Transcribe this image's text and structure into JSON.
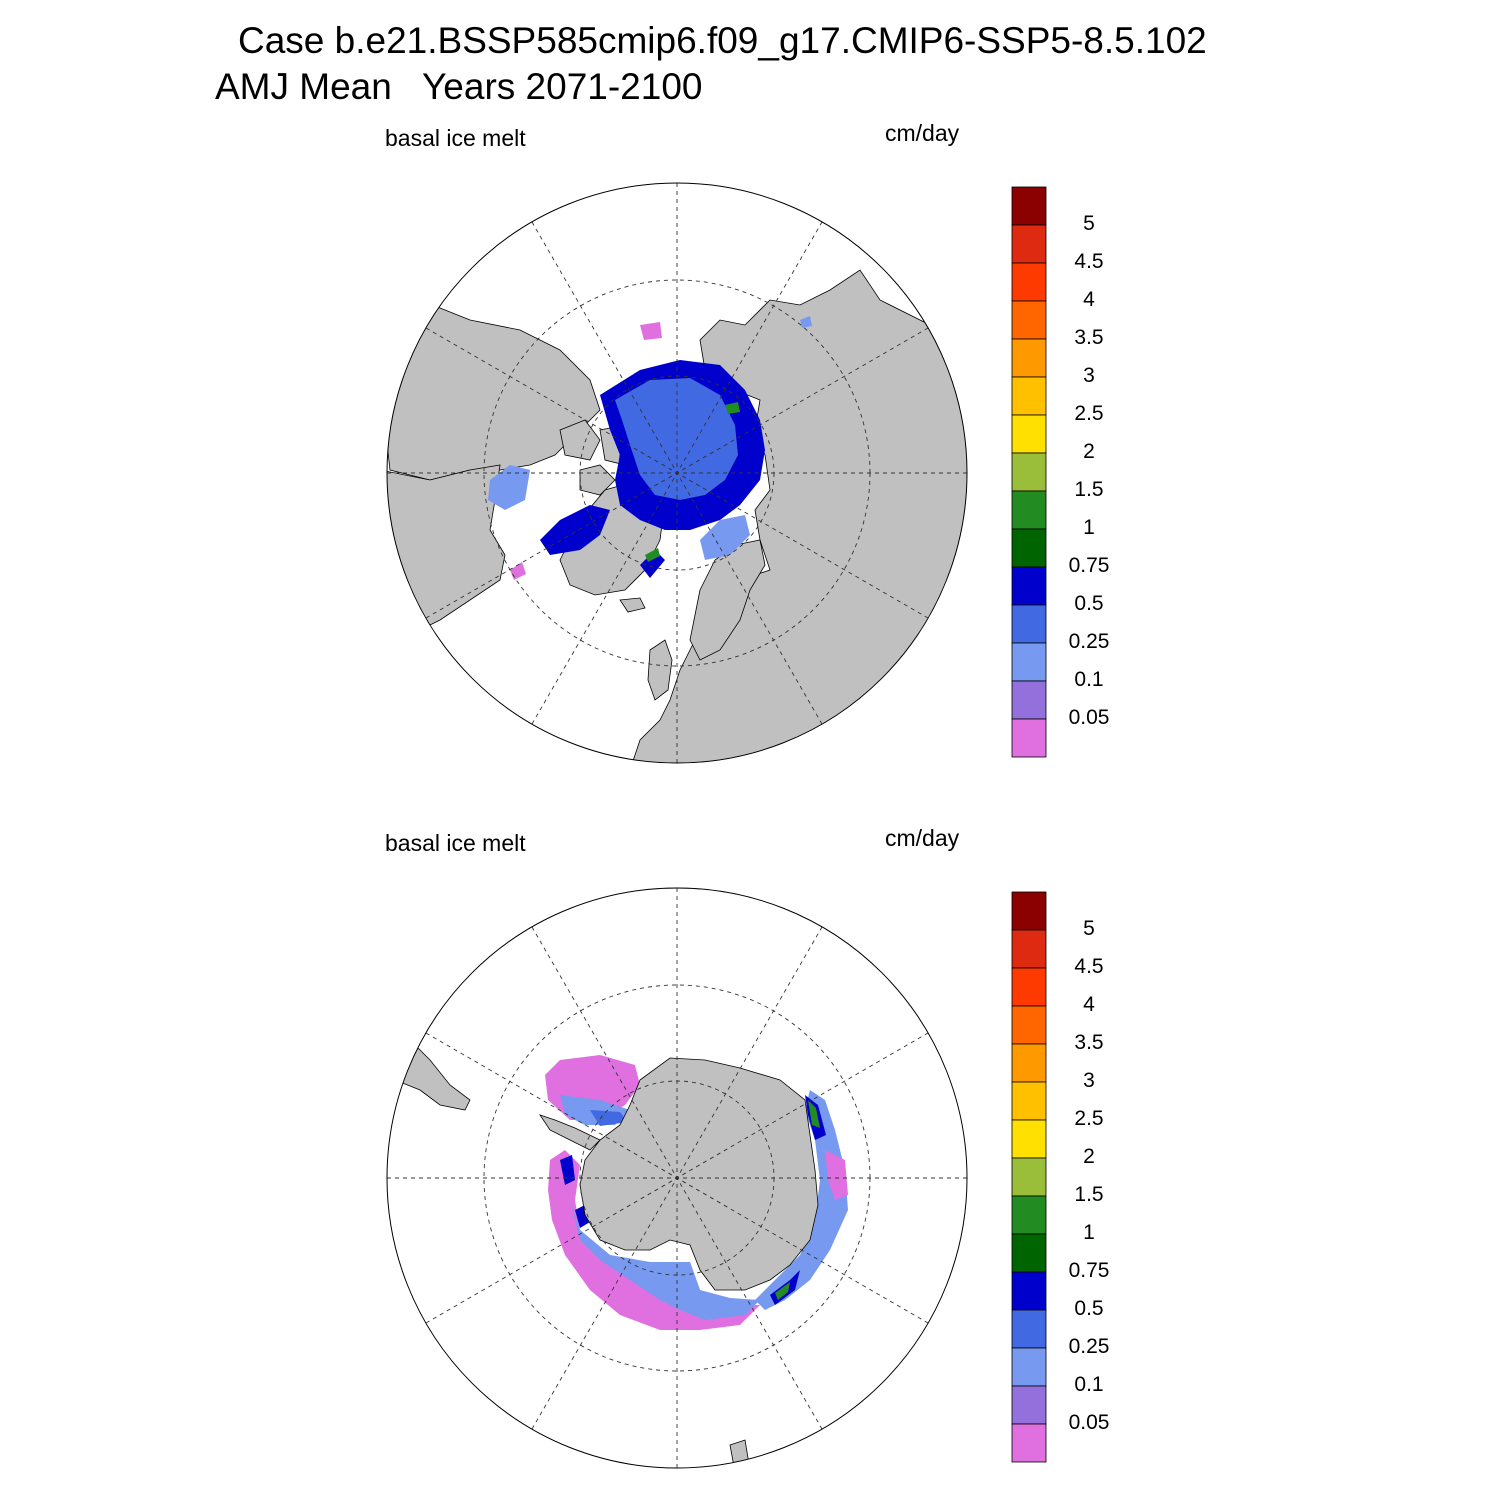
{
  "header": {
    "case_title": "Case b.e21.BSSP585cmip6.f09_g17.CMIP6-SSP5-8.5.102",
    "season": "AMJ Mean",
    "years": "Years 2071-2100"
  },
  "panels": [
    {
      "id": "north",
      "hemisphere": "Arctic",
      "variable_label": "basal ice melt",
      "units_label": "cm/day"
    },
    {
      "id": "south",
      "hemisphere": "Antarctic",
      "variable_label": "basal ice melt",
      "units_label": "cm/day"
    }
  ],
  "colorbar": {
    "labels": [
      "5",
      "4.5",
      "4",
      "3.5",
      "3",
      "2.5",
      "2",
      "1.5",
      "1",
      "0.75",
      "0.5",
      "0.25",
      "0.1",
      "0.05"
    ],
    "colors": [
      "#8b0000",
      "#dd2a10",
      "#ff3a00",
      "#ff6600",
      "#ff9900",
      "#ffc000",
      "#ffe000",
      "#9abd3a",
      "#228b22",
      "#006400",
      "#0000cd",
      "#4169e1",
      "#7799f0",
      "#9370db",
      "#e070e0"
    ]
  },
  "palette": {
    "land": "#c0c0c0",
    "ocean_no_ice": "#ffffff"
  }
}
